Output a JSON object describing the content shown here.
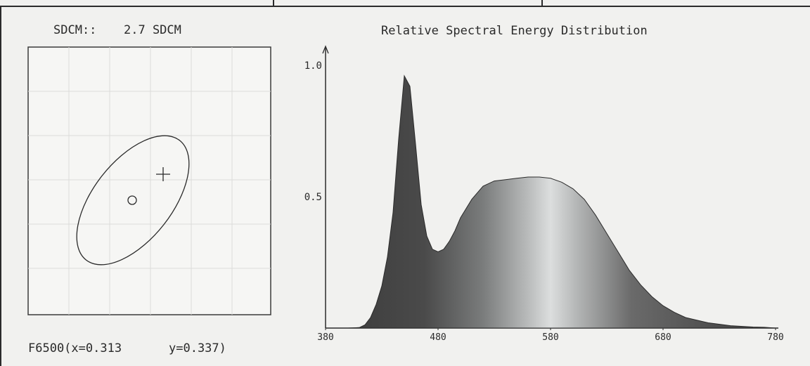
{
  "colors": {
    "ink": "#2a2a2a",
    "paper": "#f1f1ef",
    "fill_dark": "#3e3e3e",
    "fill_light": "#d9dbdb"
  },
  "left_panel": {
    "sdcm_label": "SDCM::",
    "sdcm_value": "2.7 SDCM",
    "reference_label": "F6500(x=0.313",
    "reference_y": "y=0.337)",
    "markers": [
      "circle-marker",
      "cross-marker"
    ]
  },
  "chart_data": {
    "type": "area",
    "title": "Relative Spectral Energy Distribution",
    "xlabel": "",
    "ylabel": "",
    "xlim": [
      380,
      780
    ],
    "ylim": [
      0,
      1.0
    ],
    "x_ticks": [
      380,
      480,
      580,
      680,
      780
    ],
    "y_ticks": [
      0.5,
      1.0
    ],
    "y_tick_labels": [
      "0.5",
      "1.0"
    ],
    "grid": false,
    "legend": "none",
    "series": [
      {
        "x": [
          380,
          400,
          410,
          415,
          420,
          425,
          430,
          435,
          440,
          445,
          450,
          455,
          460,
          465,
          470,
          475,
          480,
          485,
          490,
          495,
          500,
          510,
          520,
          530,
          540,
          550,
          560,
          570,
          580,
          590,
          600,
          610,
          620,
          630,
          640,
          650,
          660,
          670,
          680,
          690,
          700,
          720,
          740,
          760,
          770,
          780
        ],
        "values": [
          0.0,
          0.0,
          0.002,
          0.012,
          0.04,
          0.09,
          0.16,
          0.27,
          0.44,
          0.72,
          0.96,
          0.92,
          0.7,
          0.47,
          0.35,
          0.3,
          0.29,
          0.3,
          0.33,
          0.37,
          0.42,
          0.49,
          0.54,
          0.56,
          0.565,
          0.57,
          0.575,
          0.575,
          0.57,
          0.555,
          0.53,
          0.49,
          0.43,
          0.36,
          0.29,
          0.22,
          0.165,
          0.12,
          0.085,
          0.06,
          0.04,
          0.02,
          0.009,
          0.004,
          0.003,
          0.0
        ]
      }
    ]
  }
}
